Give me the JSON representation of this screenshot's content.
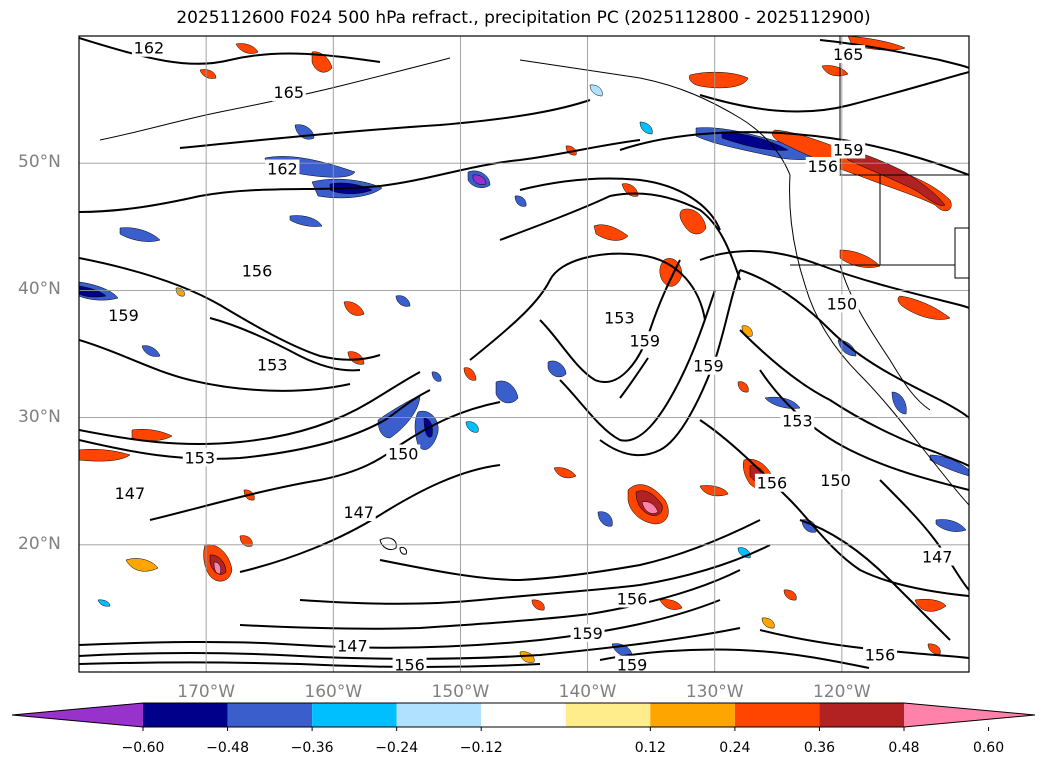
{
  "title": "2025112600 F024 500 hPa refract., precipitation PC (2025112800 - 2025112900)",
  "chart_data": {
    "type": "map",
    "lat_labels": [
      {
        "lat": 50,
        "text": "50°N"
      },
      {
        "lat": 40,
        "text": "40°N"
      },
      {
        "lat": 30,
        "text": "30°N"
      },
      {
        "lat": 20,
        "text": "20°N"
      }
    ],
    "lon_labels": [
      {
        "lon": -170,
        "text": "170°W"
      },
      {
        "lon": -160,
        "text": "160°W"
      },
      {
        "lon": -150,
        "text": "150°W"
      },
      {
        "lon": -140,
        "text": "140°W"
      },
      {
        "lon": -130,
        "text": "130°W"
      },
      {
        "lon": -120,
        "text": "120°W"
      }
    ],
    "contour_labels": [
      {
        "text": "162",
        "lon": -174.5,
        "lat": 59.0
      },
      {
        "text": "165",
        "lon": -163.5,
        "lat": 55.5
      },
      {
        "text": "162",
        "lon": -164.0,
        "lat": 49.5
      },
      {
        "text": "165",
        "lon": -119.5,
        "lat": 58.5
      },
      {
        "text": "159",
        "lon": -119.5,
        "lat": 51.0
      },
      {
        "text": "156",
        "lon": -121.5,
        "lat": 49.7
      },
      {
        "text": "156",
        "lon": -166.0,
        "lat": 41.5
      },
      {
        "text": "159",
        "lon": -176.5,
        "lat": 38.0
      },
      {
        "text": "153",
        "lon": -164.8,
        "lat": 34.1
      },
      {
        "text": "153",
        "lon": -137.5,
        "lat": 37.8
      },
      {
        "text": "159",
        "lon": -135.5,
        "lat": 36.0
      },
      {
        "text": "159",
        "lon": -130.5,
        "lat": 34.0
      },
      {
        "text": "153",
        "lon": -123.5,
        "lat": 29.7
      },
      {
        "text": "150",
        "lon": -120.0,
        "lat": 38.9
      },
      {
        "text": "150",
        "lon": -154.5,
        "lat": 27.1
      },
      {
        "text": "153",
        "lon": -170.5,
        "lat": 26.8
      },
      {
        "text": "147",
        "lon": -176.0,
        "lat": 24.0
      },
      {
        "text": "147",
        "lon": -158.0,
        "lat": 22.5
      },
      {
        "text": "156",
        "lon": -125.5,
        "lat": 24.8
      },
      {
        "text": "150",
        "lon": -120.5,
        "lat": 25.0
      },
      {
        "text": "147",
        "lon": -112.5,
        "lat": 19.0
      },
      {
        "text": "156",
        "lon": -136.5,
        "lat": 15.7
      },
      {
        "text": "159",
        "lon": -140.0,
        "lat": 13.0
      },
      {
        "text": "147",
        "lon": -158.5,
        "lat": 12.0
      },
      {
        "text": "156",
        "lon": -154.0,
        "lat": 10.5
      },
      {
        "text": "159",
        "lon": -136.5,
        "lat": 10.5
      },
      {
        "text": "156",
        "lon": -117.0,
        "lat": 11.3
      }
    ],
    "colorbar": {
      "ticks": [
        "−0.60",
        "−0.48",
        "−0.36",
        "−0.24",
        "−0.12",
        "0.12",
        "0.24",
        "0.36",
        "0.48",
        "0.60"
      ],
      "colors": [
        "#9932cc",
        "#00008b",
        "#3a5fcd",
        "#00bfff",
        "#b0e2ff",
        "#ffffff",
        "#ffec8b",
        "#ffa500",
        "#ff4500",
        "#b22222",
        "#ff82ab"
      ],
      "extend": "both"
    }
  }
}
